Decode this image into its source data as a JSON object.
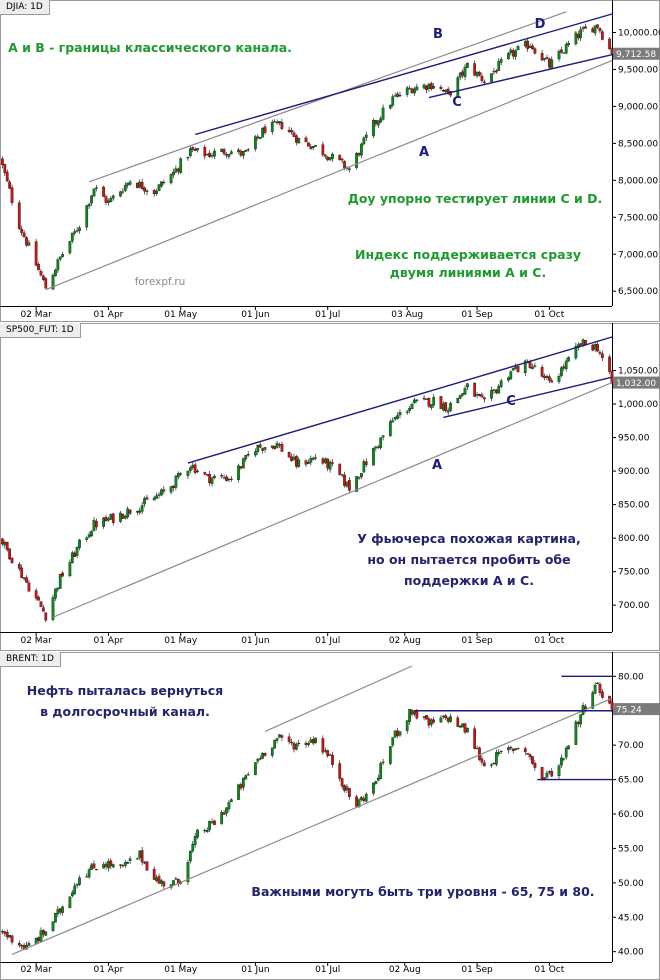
{
  "panels": [
    {
      "title": "DJIA: 1D",
      "last_value_label": "9,712.58",
      "y_ticks": [
        "10,000.00",
        "9,500.00",
        "9,000.00",
        "8,500.00",
        "8,000.00",
        "7,500.00",
        "7,000.00",
        "6,500.00"
      ],
      "x_ticks": [
        "02 Mar",
        "01 Apr",
        "01 May",
        "01 Jun",
        "01 Jul",
        "03 Aug",
        "01 Sep",
        "01 Oct"
      ],
      "line_labels": [
        "A",
        "B",
        "C",
        "D"
      ],
      "annotations": [
        "A и B - границы классического канала.",
        "Доу упорно тестирует линии C и D.",
        "Индекс поддерживается сразу",
        "двумя линиями А и С."
      ],
      "watermark": "forexpf.ru"
    },
    {
      "title": "SP500_FUT: 1D",
      "last_value_label": "1,032.00",
      "y_ticks": [
        "1,050.00",
        "1,000.00",
        "950.00",
        "900.00",
        "850.00",
        "800.00",
        "750.00",
        "700.00"
      ],
      "x_ticks": [
        "02 Mar",
        "01 Apr",
        "01 May",
        "01 Jun",
        "01 Jul",
        "02 Aug",
        "01 Sep",
        "01 Oct"
      ],
      "line_labels": [
        "A",
        "C"
      ],
      "annotations": [
        "У фьючерса похожая картина,",
        "но он пытается пробить обе",
        "поддержки А и С."
      ]
    },
    {
      "title": "BRENT: 1D",
      "last_value_label": "75.24",
      "y_ticks": [
        "80.00",
        "75.00",
        "70.00",
        "65.00",
        "60.00",
        "55.00",
        "50.00",
        "45.00",
        "40.00"
      ],
      "x_ticks": [
        "02 Mar",
        "01 Apr",
        "01 May",
        "01 Jun",
        "01 Jul",
        "02 Aug",
        "01 Sep",
        "01 Oct"
      ],
      "line_labels": [],
      "annotations": [
        "Нефть пыталась вернуться",
        "в долгосрочный канал.",
        "Важными могуть быть три уровня - 65, 75 и 80."
      ]
    }
  ],
  "chart_data": [
    {
      "type": "candlestick",
      "title": "DJIA: 1D",
      "x_range": [
        "2009-02-15",
        "2009-10-27"
      ],
      "ylim": [
        6300,
        10250
      ],
      "last_close": 9712.58,
      "anchors": [
        [
          "2009-02-15",
          8300
        ],
        [
          "2009-02-23",
          7400
        ],
        [
          "2009-03-06",
          6550
        ],
        [
          "2009-03-12",
          6950
        ],
        [
          "2009-03-20",
          7400
        ],
        [
          "2009-03-26",
          7900
        ],
        [
          "2009-04-01",
          7700
        ],
        [
          "2009-04-10",
          8000
        ],
        [
          "2009-04-20",
          7850
        ],
        [
          "2009-04-28",
          8100
        ],
        [
          "2009-05-05",
          8400
        ],
        [
          "2009-05-12",
          8350
        ],
        [
          "2009-05-20",
          8400
        ],
        [
          "2009-05-28",
          8350
        ],
        [
          "2009-06-05",
          8700
        ],
        [
          "2009-06-12",
          8750
        ],
        [
          "2009-06-19",
          8550
        ],
        [
          "2009-06-26",
          8450
        ],
        [
          "2009-07-03",
          8300
        ],
        [
          "2009-07-10",
          8150
        ],
        [
          "2009-07-20",
          8750
        ],
        [
          "2009-07-28",
          9100
        ],
        [
          "2009-08-05",
          9250
        ],
        [
          "2009-08-14",
          9300
        ],
        [
          "2009-08-20",
          9150
        ],
        [
          "2009-08-28",
          9550
        ],
        [
          "2009-09-04",
          9350
        ],
        [
          "2009-09-15",
          9700
        ],
        [
          "2009-09-23",
          9850
        ],
        [
          "2009-10-01",
          9550
        ],
        [
          "2009-10-08",
          9800
        ],
        [
          "2009-10-14",
          10000
        ],
        [
          "2009-10-21",
          10100
        ],
        [
          "2009-10-27",
          9712.58
        ]
      ]
    },
    {
      "type": "candlestick",
      "title": "SP500_FUT: 1D",
      "x_range": [
        "2009-02-15",
        "2009-10-27"
      ],
      "ylim": [
        660,
        1100
      ],
      "last_close": 1032.0,
      "anchors": [
        [
          "2009-02-15",
          800
        ],
        [
          "2009-02-25",
          740
        ],
        [
          "2009-03-06",
          685
        ],
        [
          "2009-03-12",
          740
        ],
        [
          "2009-03-20",
          790
        ],
        [
          "2009-03-26",
          820
        ],
        [
          "2009-04-03",
          830
        ],
        [
          "2009-04-15",
          850
        ],
        [
          "2009-04-25",
          870
        ],
        [
          "2009-05-05",
          910
        ],
        [
          "2009-05-12",
          890
        ],
        [
          "2009-05-22",
          890
        ],
        [
          "2009-06-01",
          935
        ],
        [
          "2009-06-10",
          940
        ],
        [
          "2009-06-18",
          910
        ],
        [
          "2009-06-26",
          920
        ],
        [
          "2009-07-03",
          905
        ],
        [
          "2009-07-10",
          875
        ],
        [
          "2009-07-20",
          930
        ],
        [
          "2009-07-28",
          975
        ],
        [
          "2009-08-05",
          1000
        ],
        [
          "2009-08-14",
          1005
        ],
        [
          "2009-08-20",
          995
        ],
        [
          "2009-08-28",
          1025
        ],
        [
          "2009-09-04",
          1000
        ],
        [
          "2009-09-15",
          1050
        ],
        [
          "2009-09-23",
          1060
        ],
        [
          "2009-10-01",
          1030
        ],
        [
          "2009-10-08",
          1060
        ],
        [
          "2009-10-14",
          1090
        ],
        [
          "2009-10-21",
          1085
        ],
        [
          "2009-10-27",
          1032.0
        ]
      ]
    },
    {
      "type": "candlestick",
      "title": "BRENT: 1D",
      "x_range": [
        "2009-02-15",
        "2009-10-27"
      ],
      "ylim": [
        38.5,
        81.5
      ],
      "last_close": 75.24,
      "anchors": [
        [
          "2009-02-15",
          43
        ],
        [
          "2009-02-26",
          40.5
        ],
        [
          "2009-03-06",
          43
        ],
        [
          "2009-03-12",
          46
        ],
        [
          "2009-03-20",
          51
        ],
        [
          "2009-03-30",
          53
        ],
        [
          "2009-04-06",
          52
        ],
        [
          "2009-04-14",
          54
        ],
        [
          "2009-04-22",
          50
        ],
        [
          "2009-04-30",
          50
        ],
        [
          "2009-05-08",
          57
        ],
        [
          "2009-05-16",
          59
        ],
        [
          "2009-05-24",
          63
        ],
        [
          "2009-06-02",
          68
        ],
        [
          "2009-06-10",
          71
        ],
        [
          "2009-06-18",
          70
        ],
        [
          "2009-06-26",
          71
        ],
        [
          "2009-07-04",
          67
        ],
        [
          "2009-07-12",
          61
        ],
        [
          "2009-07-20",
          64
        ],
        [
          "2009-07-28",
          71
        ],
        [
          "2009-08-05",
          75
        ],
        [
          "2009-08-12",
          73
        ],
        [
          "2009-08-20",
          74
        ],
        [
          "2009-08-28",
          72
        ],
        [
          "2009-09-04",
          67
        ],
        [
          "2009-09-12",
          69
        ],
        [
          "2009-09-20",
          70
        ],
        [
          "2009-09-28",
          65
        ],
        [
          "2009-10-05",
          67
        ],
        [
          "2009-10-12",
          73
        ],
        [
          "2009-10-20",
          79
        ],
        [
          "2009-10-24",
          77
        ],
        [
          "2009-10-27",
          75.24
        ]
      ],
      "horizontal_levels": [
        65,
        75,
        80
      ]
    }
  ],
  "colors": {
    "bull": "#0b8a1c",
    "bear": "#cc1414",
    "channel": "#8c8c8c",
    "trend": "#1c1c7c",
    "note_green": "#1f9a2e",
    "note_navy": "#23236e"
  }
}
